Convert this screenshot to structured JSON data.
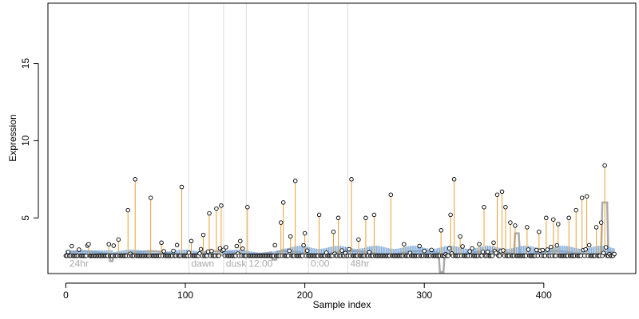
{
  "chart_data": {
    "type": "scatter",
    "title": "",
    "xlabel": "Sample index",
    "ylabel": "Expression",
    "xlim": [
      -15,
      477
    ],
    "ylim": [
      1.4,
      18.9
    ],
    "x_ticks": [
      0,
      100,
      200,
      300,
      400
    ],
    "y_ticks": [
      5,
      10,
      15
    ],
    "grid": false,
    "legend": "none",
    "baseline": 2.55,
    "colors": {
      "stem": "#e8a033",
      "bar": "#7ba7d9",
      "profile": "#aaaaaa",
      "vline": "#dddddd",
      "point_stroke": "#000000",
      "point_fill": "#ffffff",
      "axis": "#000000",
      "annotation": "#aaaaaa"
    },
    "condition_markers": [
      {
        "x": 103,
        "label": "dawn"
      },
      {
        "x": 132,
        "label": "dusk"
      },
      {
        "x": 151,
        "label": "12:00"
      },
      {
        "x": 203,
        "label": "0:00"
      },
      {
        "x": 236,
        "label": "48hr"
      }
    ],
    "condition_start_label": "24hr",
    "peaks": [
      {
        "x": 19,
        "y": 3.3
      },
      {
        "x": 36,
        "y": 3.3
      },
      {
        "x": 44,
        "y": 3.6
      },
      {
        "x": 52,
        "y": 5.5
      },
      {
        "x": 58,
        "y": 7.5
      },
      {
        "x": 71,
        "y": 6.3
      },
      {
        "x": 80,
        "y": 3.4
      },
      {
        "x": 97,
        "y": 7.0
      },
      {
        "x": 105,
        "y": 3.5
      },
      {
        "x": 115,
        "y": 3.9
      },
      {
        "x": 120,
        "y": 5.3
      },
      {
        "x": 126,
        "y": 5.6
      },
      {
        "x": 130,
        "y": 5.8
      },
      {
        "x": 146,
        "y": 3.5
      },
      {
        "x": 152,
        "y": 5.7
      },
      {
        "x": 180,
        "y": 4.7
      },
      {
        "x": 182,
        "y": 6.0
      },
      {
        "x": 188,
        "y": 3.8
      },
      {
        "x": 192,
        "y": 7.4
      },
      {
        "x": 200,
        "y": 4.0
      },
      {
        "x": 212,
        "y": 5.2
      },
      {
        "x": 224,
        "y": 4.1
      },
      {
        "x": 228,
        "y": 5.0
      },
      {
        "x": 239,
        "y": 7.5
      },
      {
        "x": 245,
        "y": 3.6
      },
      {
        "x": 251,
        "y": 5.0
      },
      {
        "x": 258,
        "y": 5.2
      },
      {
        "x": 272,
        "y": 6.5
      },
      {
        "x": 283,
        "y": 3.3
      },
      {
        "x": 314,
        "y": 4.2
      },
      {
        "x": 322,
        "y": 5.2
      },
      {
        "x": 325,
        "y": 7.5
      },
      {
        "x": 330,
        "y": 3.8
      },
      {
        "x": 346,
        "y": 3.3
      },
      {
        "x": 350,
        "y": 5.7
      },
      {
        "x": 358,
        "y": 3.4
      },
      {
        "x": 361,
        "y": 6.5
      },
      {
        "x": 365,
        "y": 6.7
      },
      {
        "x": 368,
        "y": 5.7
      },
      {
        "x": 372,
        "y": 4.7
      },
      {
        "x": 376,
        "y": 4.5
      },
      {
        "x": 386,
        "y": 4.4
      },
      {
        "x": 396,
        "y": 4.1
      },
      {
        "x": 402,
        "y": 5.0
      },
      {
        "x": 408,
        "y": 4.9
      },
      {
        "x": 412,
        "y": 4.6
      },
      {
        "x": 421,
        "y": 5.0
      },
      {
        "x": 427,
        "y": 5.5
      },
      {
        "x": 432,
        "y": 6.3
      },
      {
        "x": 436,
        "y": 6.4
      },
      {
        "x": 444,
        "y": 4.4
      },
      {
        "x": 448,
        "y": 4.7
      },
      {
        "x": 451,
        "y": 8.4
      }
    ]
  }
}
